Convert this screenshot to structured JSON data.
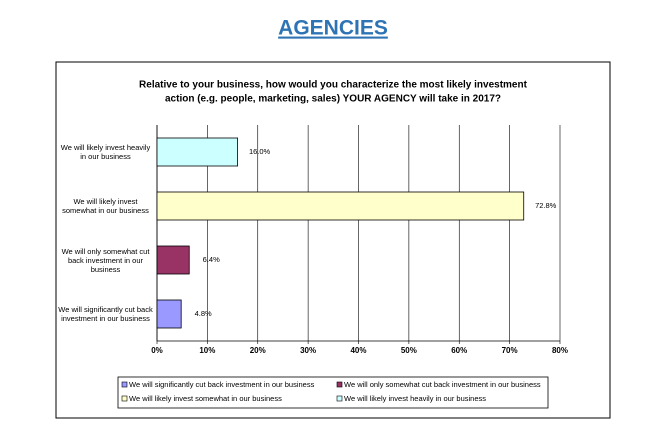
{
  "header": {
    "title": "AGENCIES"
  },
  "chart_data": {
    "type": "barh",
    "title": [
      "Relative to your business, how would you characterize the most likely investment",
      "action (e.g. people, marketing, sales) YOUR AGENCY will take in 2017?"
    ],
    "categories": [
      "We will likely invest heavily in our business",
      "We will likely invest somewhat in our business",
      "We will only somewhat cut back investment in our business",
      "We will significantly cut back investment in our business"
    ],
    "values": [
      16.0,
      72.8,
      6.4,
      4.8
    ],
    "value_labels": [
      "16.0%",
      "72.8%",
      "6.4%",
      "4.8%"
    ],
    "colors": [
      "#ccffff",
      "#ffffcc",
      "#993366",
      "#9999ff"
    ],
    "xlim": [
      0,
      80
    ],
    "xticks": [
      {
        "value": 0,
        "label": "0%"
      },
      {
        "value": 10,
        "label": "10%"
      },
      {
        "value": 20,
        "label": "20%"
      },
      {
        "value": 30,
        "label": "30%"
      },
      {
        "value": 40,
        "label": "40%"
      },
      {
        "value": 50,
        "label": "50%"
      },
      {
        "value": 60,
        "label": "60%"
      },
      {
        "value": 70,
        "label": "70%"
      },
      {
        "value": 80,
        "label": "80%"
      }
    ],
    "grid": true
  }
}
